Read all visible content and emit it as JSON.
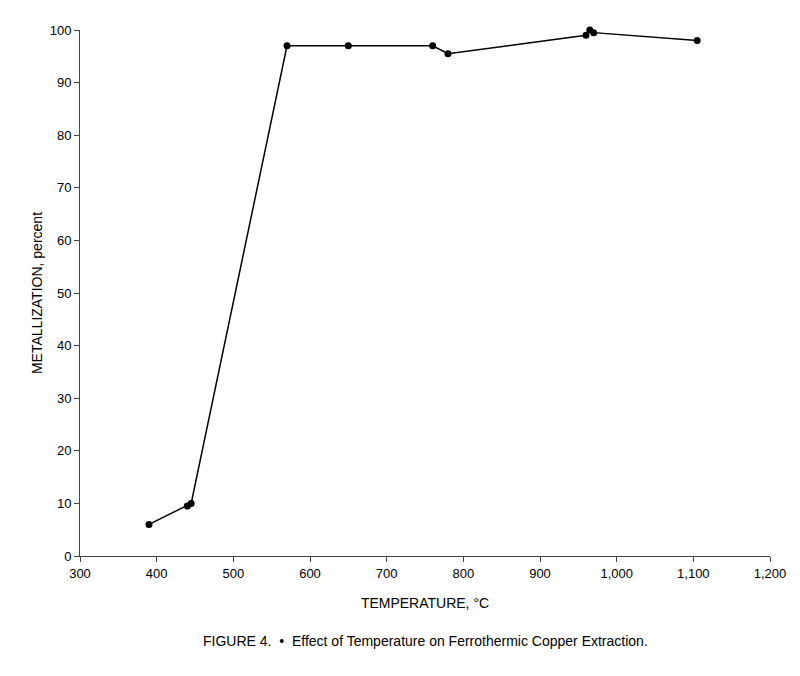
{
  "chart_data": {
    "type": "line",
    "x": [
      390,
      440,
      445,
      570,
      650,
      760,
      780,
      960,
      965,
      970,
      1105
    ],
    "values": [
      6,
      9.5,
      10,
      97,
      97,
      97,
      95.5,
      99,
      100,
      99.5,
      98
    ],
    "xlabel": "TEMPERATURE, °C",
    "ylabel": "METALLIZATION, percent",
    "caption": "FIGURE 4.  •  Effect of Temperature on Ferrothermic Copper Extraction.",
    "xlim": [
      300,
      1200
    ],
    "ylim": [
      0,
      100
    ],
    "xticks": [
      300,
      400,
      500,
      600,
      700,
      800,
      900,
      {
        "value": 1000,
        "label": "1,000"
      },
      {
        "value": 1100,
        "label": "1,100"
      },
      {
        "value": 1200,
        "label": "1,200"
      }
    ],
    "yticks": [
      0,
      10,
      20,
      30,
      40,
      50,
      60,
      70,
      80,
      90,
      100
    ],
    "color": "#000000",
    "marker": "circle",
    "grid": false
  }
}
